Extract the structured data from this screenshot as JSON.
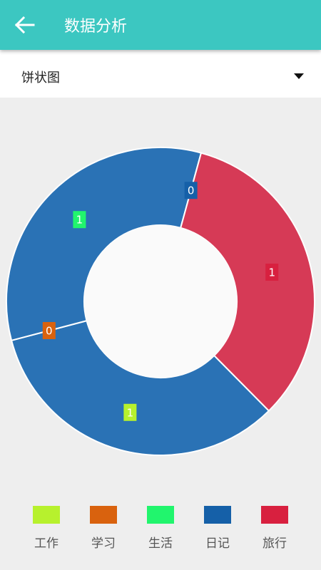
{
  "header": {
    "title": "数据分析"
  },
  "dropdown": {
    "label": "饼状图"
  },
  "chart_data": {
    "type": "donut",
    "categories": [
      "工作",
      "学习",
      "生活",
      "日记",
      "旅行"
    ],
    "values": [
      1,
      0,
      1,
      0,
      1
    ],
    "colors": [
      "#b7f12d",
      "#d9620e",
      "#21f56d",
      "#1560a8",
      "#d8203f"
    ],
    "slice_colors": [
      "#2a72b5",
      "#2a72b5",
      "#2a72b5",
      "#2a72b5",
      "#d63a56"
    ],
    "legend": "bottom"
  }
}
